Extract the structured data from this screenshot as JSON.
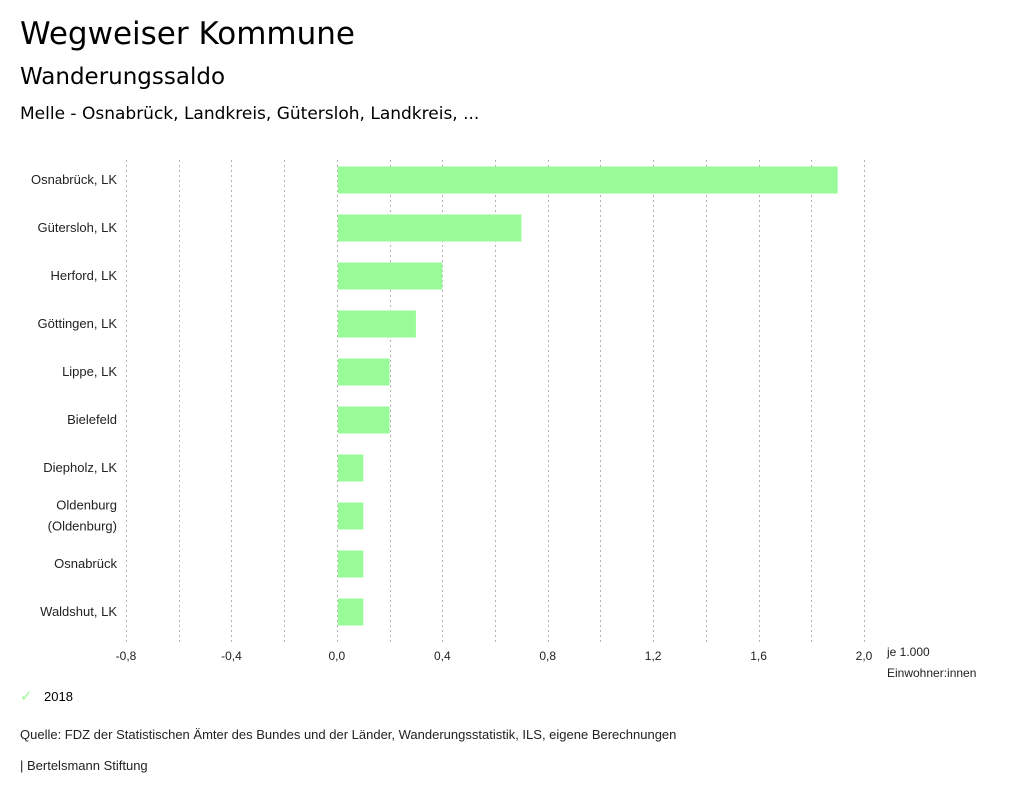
{
  "header": {
    "title": "Wegweiser Kommune",
    "subtitle": "Wanderungssaldo",
    "region": "Melle - Osnabrück, Landkreis, Gütersloh, Landkreis, ..."
  },
  "colors": {
    "bar": "#98fb98",
    "grid": "#b3b3b3"
  },
  "chart_data": {
    "type": "bar",
    "orientation": "horizontal",
    "title": "Wanderungssaldo",
    "categories": [
      "Osnabrück, LK",
      "Gütersloh, LK",
      "Herford, LK",
      "Göttingen, LK",
      "Lippe, LK",
      "Bielefeld",
      "Diepholz, LK",
      "Oldenburg (Oldenburg)",
      "Osnabrück",
      "Waldshut, LK"
    ],
    "category_lines": [
      [
        "Osnabrück, LK"
      ],
      [
        "Gütersloh, LK"
      ],
      [
        "Herford, LK"
      ],
      [
        "Göttingen, LK"
      ],
      [
        "Lippe, LK"
      ],
      [
        "Bielefeld"
      ],
      [
        "Diepholz, LK"
      ],
      [
        "Oldenburg",
        "(Oldenburg)"
      ],
      [
        "Osnabrück"
      ],
      [
        "Waldshut, LK"
      ]
    ],
    "series": [
      {
        "name": "2018",
        "values": [
          1.9,
          0.7,
          0.4,
          0.3,
          0.2,
          0.2,
          0.1,
          0.1,
          0.1,
          0.1
        ]
      }
    ],
    "xlim": [
      -0.8,
      2.0
    ],
    "xticks": [
      -0.8,
      -0.4,
      0.0,
      0.4,
      0.8,
      1.2,
      1.6,
      2.0
    ],
    "xtick_labels": [
      "-0,8",
      "-0,4",
      "0,0",
      "0,4",
      "0,8",
      "1,2",
      "1,6",
      "2,0"
    ],
    "grid_step": 0.2,
    "xlabel_lines": [
      "je 1.000",
      "Einwohner:innen"
    ],
    "ylabel": "",
    "grid": true,
    "legend_position": "bottom-left"
  },
  "legend": {
    "label": "2018",
    "icon": "check-icon"
  },
  "footer": {
    "source": "Quelle: FDZ der Statistischen Ämter des Bundes und der Länder, Wanderungsstatistik, ILS, eigene Berechnungen",
    "brand": "| Bertelsmann Stiftung"
  }
}
